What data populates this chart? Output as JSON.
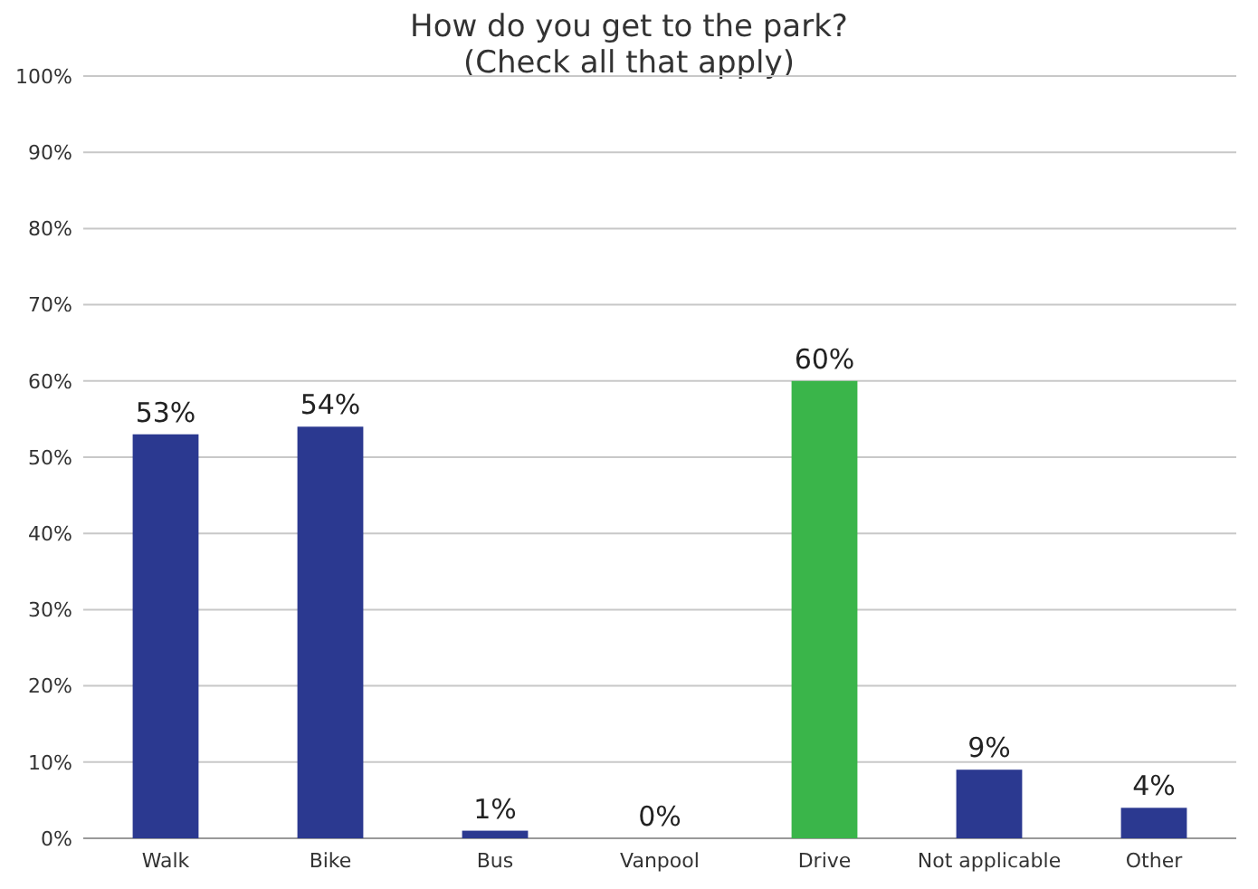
{
  "chart_data": {
    "type": "bar",
    "title": "How do you get to the park?",
    "subtitle": "(Check all that apply)",
    "categories": [
      "Walk",
      "Bike",
      "Bus",
      "Vanpool",
      "Drive",
      "Not applicable",
      "Other"
    ],
    "values": [
      53,
      54,
      1,
      0,
      60,
      9,
      4
    ],
    "colors": [
      "#2b3990",
      "#2b3990",
      "#2b3990",
      "#2b3990",
      "#3ab54a",
      "#2b3990",
      "#2b3990"
    ],
    "value_labels": [
      "53%",
      "54%",
      "1%",
      "0%",
      "60%",
      "9%",
      "4%"
    ],
    "ylim": [
      0,
      100
    ],
    "yticks": [
      {
        "value": 0,
        "label": "0%"
      },
      {
        "value": 10,
        "label": "10%"
      },
      {
        "value": 20,
        "label": "20%"
      },
      {
        "value": 30,
        "label": "30%"
      },
      {
        "value": 40,
        "label": "40%"
      },
      {
        "value": 50,
        "label": "50%"
      },
      {
        "value": 60,
        "label": "60%"
      },
      {
        "value": 70,
        "label": "70%"
      },
      {
        "value": 80,
        "label": "80%"
      },
      {
        "value": 90,
        "label": "90%"
      },
      {
        "value": 100,
        "label": "100%"
      }
    ],
    "grid": "y"
  }
}
